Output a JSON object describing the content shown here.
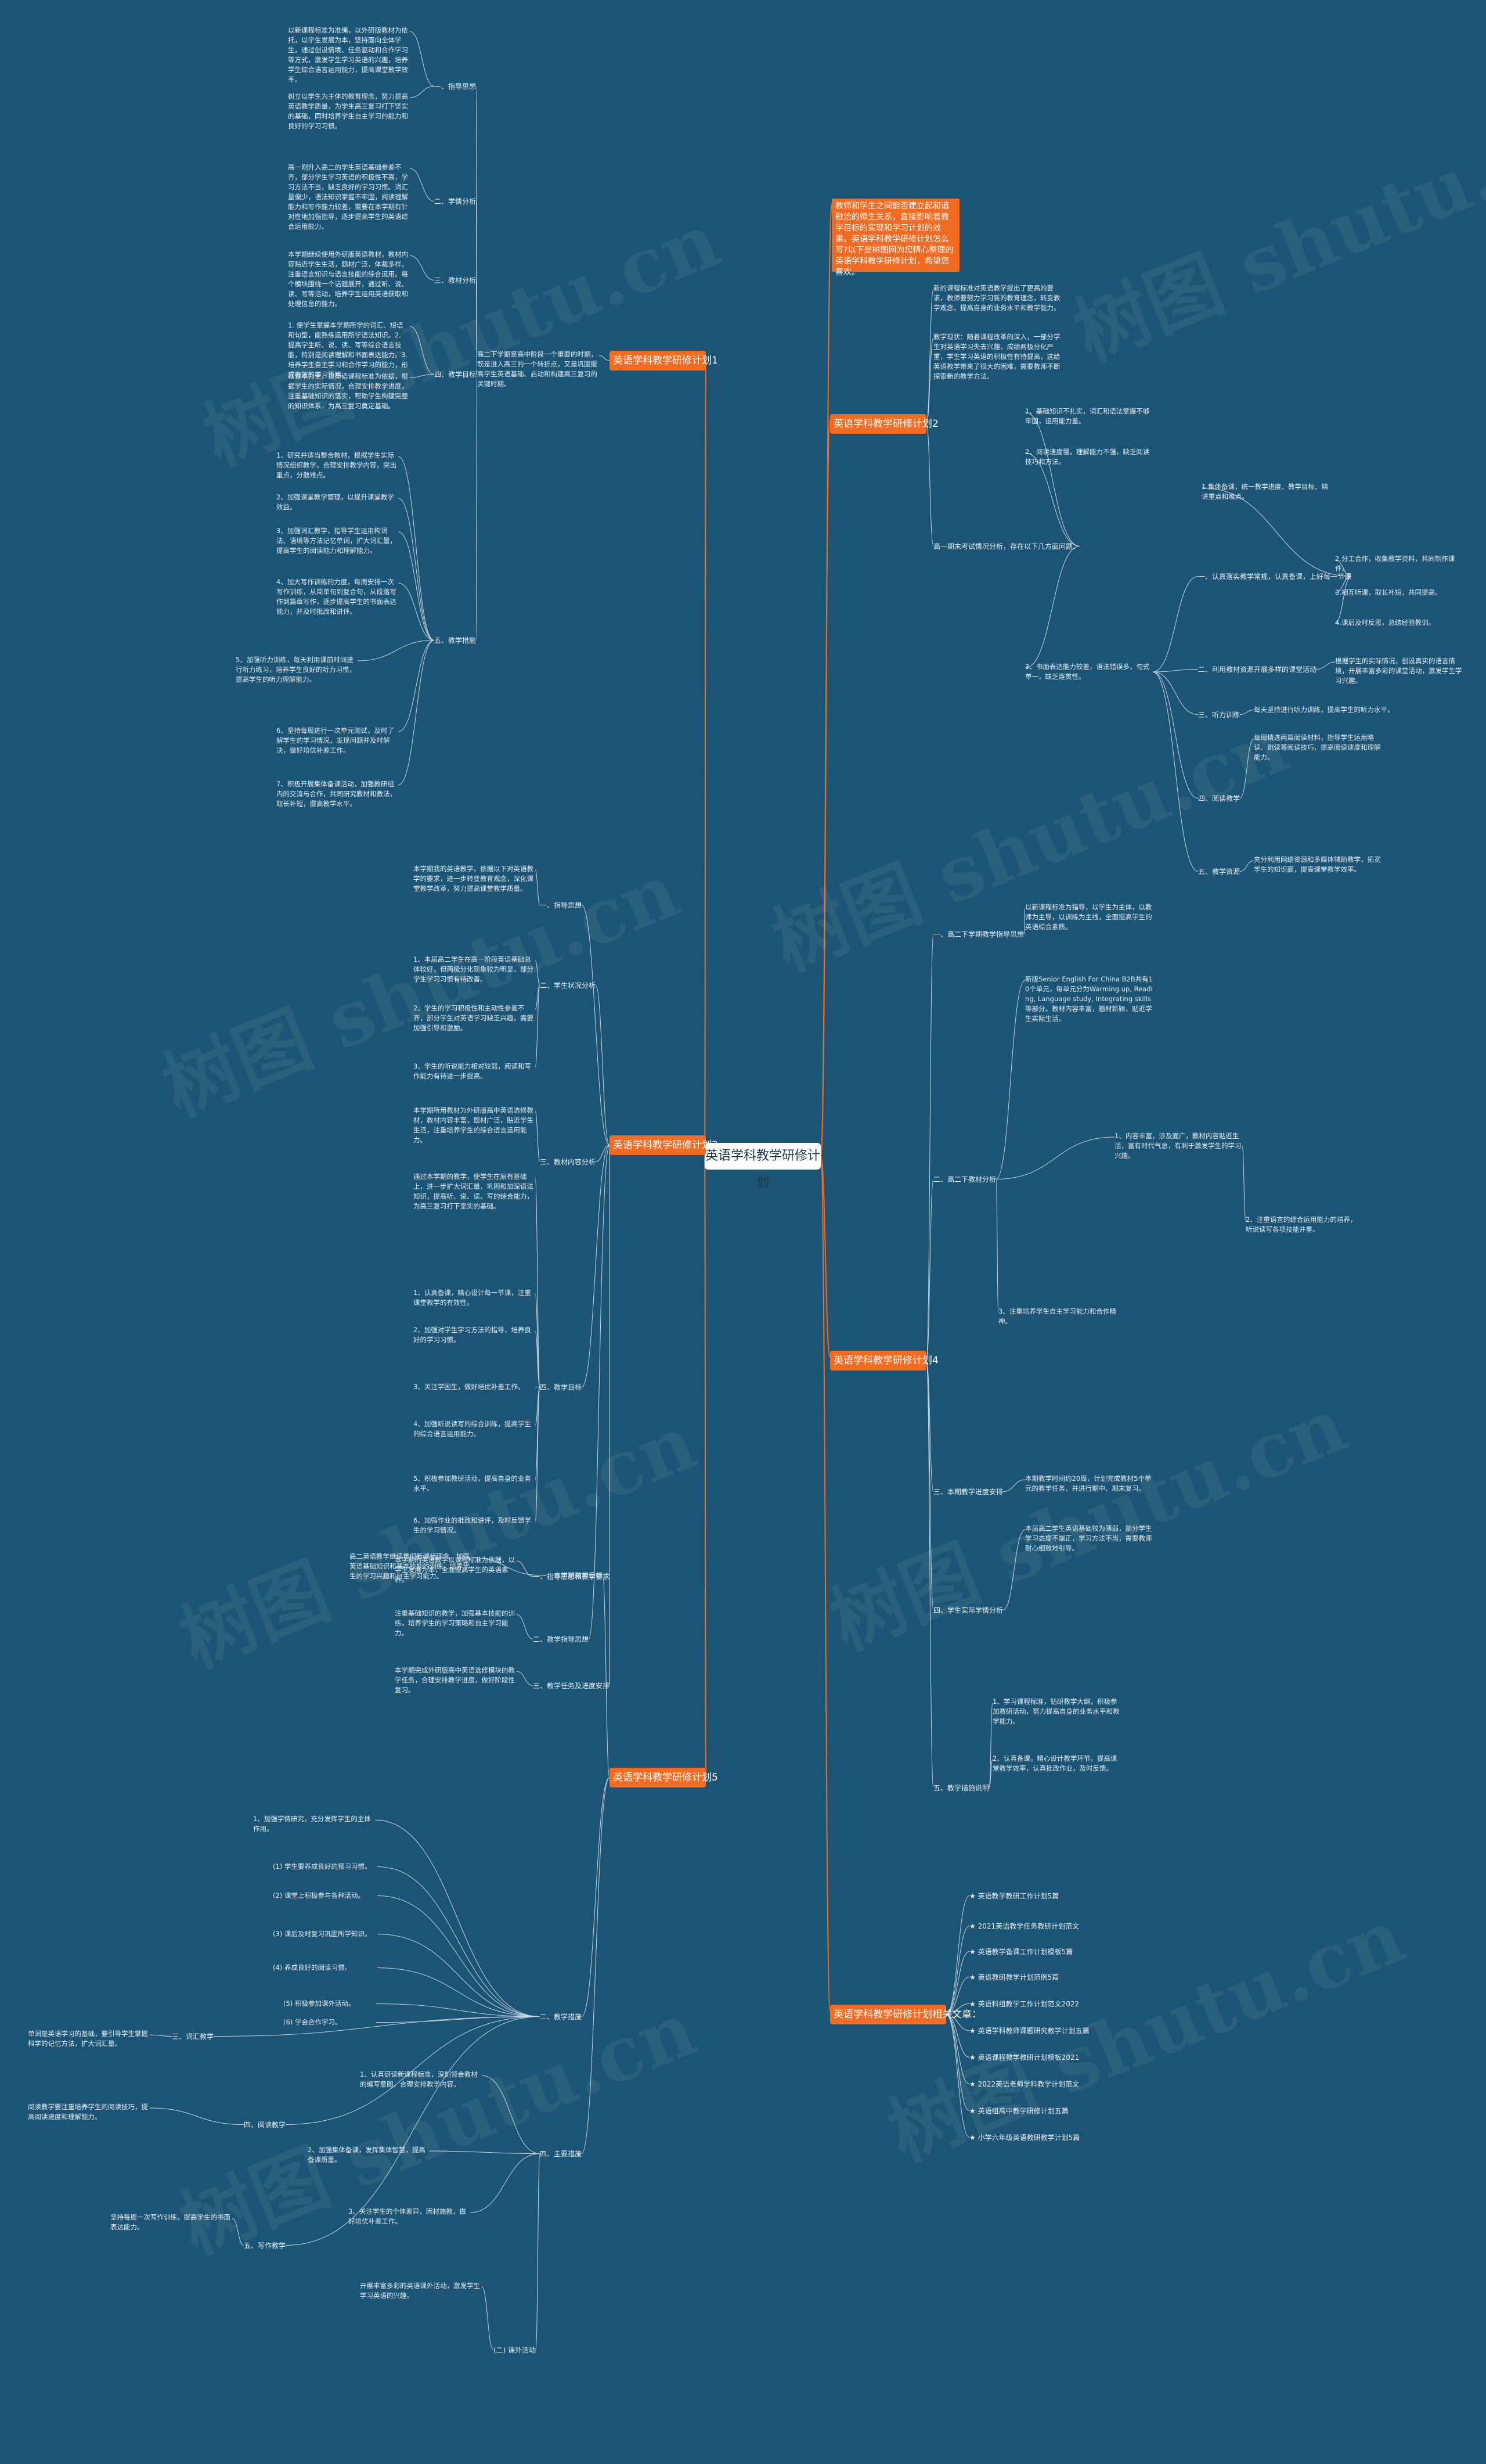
{
  "root": "英语学科教学研修计划",
  "callout": "教师和学生之间能否建立起和谐融洽的师生关系，直接影响着教学目标的实现和学习计划的效果。英语学科教学研修计划怎么写?以下是树图网为您精心整理的英语学科教学研修计划，希望您喜欢。",
  "branches": {
    "p1": {
      "title": "英语学科教学研修计划1",
      "intro": "高二下学期是高中阶段一个重要的时期，既是进入高三的一个转折点，又是巩固提高学生英语基础、启动和构建高三复习的关键时期。",
      "l1": "一、指导思想",
      "t1": "以新课程标准为准绳，以外研版教材为依托，以学生发展为本，坚持面向全体学生，通过创设情境、任务驱动和合作学习等方式，激发学生学习英语的兴趣，培养学生综合语言运用能力，提高课堂教学效率。",
      "t1b": "树立以学生为主体的教育理念，努力提高英语教学质量，为学生高三复习打下坚实的基础，同时培养学生自主学习的能力和良好的学习习惯。",
      "l2": "二、学情分析",
      "t2": "高一刚升入高二的学生英语基础参差不齐，部分学生学习英语的积极性不高，学习方法不当，缺乏良好的学习习惯。词汇量偏少，语法知识掌握不牢固，阅读理解能力和写作能力较差，需要在本学期有针对性地加强指导，逐步提高学生的英语综合运用能力。",
      "l3": "三、教材分析",
      "t3": "本学期继续使用外研版英语教材，教材内容贴近学生生活，题材广泛，体裁多样，注重语言知识与语言技能的综合运用。每个模块围绕一个话题展开，通过听、说、读、写等活动，培养学生运用英语获取和处理信息的能力。",
      "l4": "四、教学目标",
      "t4": "1. 使学生掌握本学期所学的词汇、短语和句型，能熟练运用所学语法知识。2. 提高学生听、说、读、写等综合语言技能，特别是阅读理解和书面表达能力。3. 培养学生自主学习和合作学习的能力，形成有效的学习策略。",
      "t4b": "以课本为主，以英语课程标准为依据，根据学生的实际情况，合理安排教学进度，注重基础知识的落实，帮助学生构建完整的知识体系，为高三复习奠定基础。",
      "l5": "五、教学措施",
      "t5": "1、研究并适当整合教材，根据学生实际情况组织教学，合理安排教学内容，突出重点，分散难点。",
      "t5b": "2、加强课堂教学管理，以提升课堂教学效益。",
      "t5c": "3、加强词汇教学，指导学生运用构词法、语境等方法记忆单词，扩大词汇量，提高学生的阅读能力和理解能力。",
      "t5d": "4、加大写作训练的力度，每周安排一次写作训练，从简单句到复合句，从段落写作到篇章写作，逐步提高学生的书面表达能力，并及时批改和讲评。",
      "t5e": "5、加强听力训练，每天利用课前时间进行听力练习，培养学生良好的听力习惯，提高学生的听力理解能力。",
      "t5f": "6、坚持每周进行一次单元测试，及时了解学生的学习情况，发现问题并及时解决，做好培优补差工作。",
      "t5g": "7、积极开展集体备课活动，加强教研组内的交流与合作，共同研究教材和教法，取长补短，提高教学水平。"
    },
    "p2": {
      "title": "英语学科教学研修计划2",
      "intro": "新的课程标准对英语教学提出了更高的要求，教师要努力学习新的教育理念，转变教学观念，提高自身的业务水平和教学能力。",
      "intro2": "教学现状：随着课程改革的深入，一部分学生对英语学习失去兴趣，成绩两极分化严重，学生学习英语的积极性有待提高，这给英语教学带来了很大的困难，需要教师不断探索新的教学方法。",
      "head": "高一期末考试情况分析，存在以下几方面问题：",
      "q1": "1、基础知识不扎实，词汇和语法掌握不够牢固，运用能力差。",
      "q2": "2、阅读速度慢，理解能力不强，缺乏阅读技巧和方法。",
      "q3": "3、书面表达能力较差，语法错误多，句式单一，缺乏连贯性。",
      "s1": "一、认真落实教学常规，认真备课，上好每一节课",
      "s1t": "1.集体备课，统一教学进度、教学目标、精讲重点和难点。",
      "s1t2": "2.分工合作，收集教学资料，共同制作课件。",
      "s1t3": "3.相互听课，取长补短，共同提高。",
      "s1t4": "4.课后及时反思，总结经验教训。",
      "s2": "二、利用教材资源开展多样的课堂活动",
      "s2t": "根据学生的实际情况，创设真实的语言情境，开展丰富多彩的课堂活动，激发学生学习兴趣。",
      "s3": "三、听力训练",
      "s3t": "每天坚持进行听力训练，提高学生的听力水平。",
      "s4": "四、阅读教学",
      "s4t": "每周精选两篇阅读材料，指导学生运用略读、跳读等阅读技巧，提高阅读速度和理解能力。",
      "s5": "五、教学资源",
      "s5t": "充分利用网络资源和多媒体辅助教学，拓宽学生的知识面，提高课堂教学效率。"
    },
    "p3": {
      "title": "英语学科教学研修计划3",
      "l1": "一、指导思想",
      "t1": "本学期我的英语教学，依据以下对英语教学的要求，进一步转变教育观念，深化课堂教学改革，努力提高课堂教学质量。",
      "l2": "二、学生状况分析",
      "t2": "1、本届高二学生在高一阶段英语基础总体较好，但两极分化现象较为明显，部分学生学习习惯有待改善。",
      "t2b": "2、学生的学习积极性和主动性参差不齐，部分学生对英语学习缺乏兴趣，需要加强引导和激励。",
      "t2c": "3、学生的听说能力相对较弱，阅读和写作能力有待进一步提高。",
      "l3": "三、教材内容分析",
      "t3": "本学期所用教材为外研版高中英语选修教材，教材内容丰富，题材广泛，贴近学生生活，注重培养学生的综合语言运用能力。",
      "l4": "四、教学目标",
      "t4": "通过本学期的教学，使学生在原有基础上，进一步扩大词汇量，巩固和加深语法知识，提高听、说、读、写的综合能力，为高三复习打下坚实的基础。",
      "l5": "五、教学措施",
      "t5": "1、认真备课，精心设计每一节课，注重课堂教学的有效性。",
      "t5b": "2、加强对学生学习方法的指导，培养良好的学习习惯。",
      "t5c": "3、关注学困生，做好培优补差工作。",
      "t5d": "4、加强听说读写的综合训练，提高学生的综合语言运用能力。",
      "t5e": "5、积极参加教研活动，提高自身的业务水平。",
      "t5f": "6、加强作业的批改和讲评，及时反馈学生的学习情况。",
      "l6": "一、指导思想和教学要求",
      "t6": "本学期的英语教学以课程标准为依据，以学生发展为本，全面提高学生的英语素养。",
      "l7": "二、教学指导思想",
      "t7": "注重基础知识的教学，加强基本技能的训练，培养学生的学习策略和自主学习能力。",
      "l8": "三、教学任务及进度安排",
      "t8": "本学期完成外研版高中英语选修模块的教学任务，合理安排教学进度，做好阶段性复习。"
    },
    "p4": {
      "title": "英语学科教学研修计划4",
      "l1": "一、高二下学期教学指导思想",
      "t1": "以新课程标准为指导，以学生为主体，以教师为主导，以训练为主线，全面提高学生的英语综合素质。",
      "l2": "二、高二下教材分析",
      "t2": "新版Senior English For China B2B共有10个单元，每单元分为Warming up, Reading, Language study, Integrating skills等部分。教材内容丰富，题材新颖，贴近学生实际生活。",
      "t2b": "1、内容丰富，涉及面广，教材内容贴近生活，富有时代气息，有利于激发学生的学习兴趣。",
      "t2c": "2、注重语言的综合运用能力的培养，听说读写各项技能并重。",
      "t2d": "3、注重培养学生自主学习能力和合作精神。",
      "l3": "三、本期教学进度安排",
      "t3": "本期教学时间约20周，计划完成教材5个单元的教学任务，并进行期中、期末复习。",
      "l4": "四、学生实际学情分析",
      "t4": "本届高二学生英语基础较为薄弱，部分学生学习态度不端正，学习方法不当，需要教师耐心细致地引导。",
      "l5": "五、教学措施说明",
      "t5": "1、学习课程标准，钻研教学大纲，积极参加教研活动，努力提高自身的业务水平和教学能力。",
      "t5b": "2、认真备课，精心设计教学环节，提高课堂教学效率，认真批改作业，及时反馈。"
    },
    "p5": {
      "title": "英语学科教学研修计划5",
      "l1": "一、本学期教学目标",
      "t1": "高二英语教学继续贯彻新课标理念，加强英语基础知识和基本技能的训练，培养学生的学习兴趣和自主学习能力。",
      "l2": "二、教学措施",
      "t2": "1、加强学情研究，充分发挥学生的主体作用。",
      "t2b": "(1) 学生要养成良好的预习习惯。",
      "t2c": "(2) 课堂上积极参与各种活动。",
      "t2d": "(3) 课后及时复习巩固所学知识。",
      "t2e": "(4) 养成良好的阅读习惯。",
      "t2f": "(5) 积极参加课外活动。",
      "t2g": "(6) 学会合作学习。",
      "l3": "三、词汇教学",
      "t3": "单词是英语学习的基础，要引导学生掌握科学的记忆方法，扩大词汇量。",
      "l4": "四、阅读教学",
      "t4": "阅读教学要注重培养学生的阅读技巧，提高阅读速度和理解能力。",
      "l5": "五、写作教学",
      "t5": "坚持每周一次写作训练，提高学生的书面表达能力。",
      "l6": "四、主要措施",
      "t6": "1、认真研读新课程标准，深刻领会教材的编写意图，合理安排教学内容。",
      "t6b": "2、加强集体备课，发挥集体智慧，提高备课质量。",
      "t6c": "3、关注学生的个体差异，因材施教，做好培优补差工作。",
      "l7": "(二) 课外活动",
      "t7": "开展丰富多彩的英语课外活动，激发学生学习英语的兴趣。"
    },
    "p6": {
      "title": "英语学科教学研修计划相关文章：",
      "links": [
        "★ 英语教学教研工作计划5篇",
        "★ 2021英语教学任务教研计划范文",
        "★ 英语教学备课工作计划模板5篇",
        "★ 英语教研教学计划范例5篇",
        "★ 英语科组教学工作计划范文2022",
        "★ 英语学科教师课题研究教学计划五篇",
        "★ 英语课程教学教研计划模板2021",
        "★ 2022英语老师学科教学计划范文",
        "★ 英语组高中教学研修计划五篇",
        "★ 小学六年级英语教研教学计划5篇"
      ]
    }
  },
  "watermark": "树图 shutu.cn"
}
